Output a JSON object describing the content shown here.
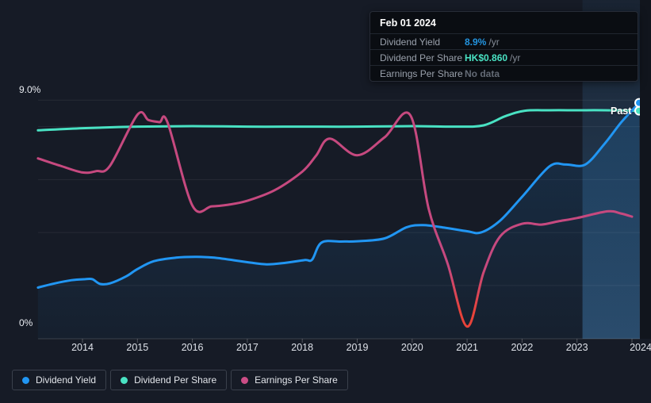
{
  "tooltip": {
    "date": "Feb 01 2024",
    "rows": [
      {
        "label": "Dividend Yield",
        "value": "8.9%",
        "suffix": "/yr",
        "value_color": "#2394df"
      },
      {
        "label": "Dividend Per Share",
        "value": "HK$0.860",
        "suffix": "/yr",
        "value_color": "#49e2c3"
      },
      {
        "label": "Earnings Per Share",
        "value": "No data",
        "suffix": "",
        "value_color": "#636a75"
      }
    ]
  },
  "past_label": "Past",
  "y_axis": {
    "top_label": "9.0%",
    "bottom_label": "0%"
  },
  "legend": [
    {
      "label": "Dividend Yield",
      "color": "#2196f3"
    },
    {
      "label": "Dividend Per Share",
      "color": "#49e2c3"
    },
    {
      "label": "Earnings Per Share",
      "color": "#cb4d86"
    }
  ],
  "chart_data": {
    "type": "line",
    "title": "Dividend history (Past)",
    "x_ticks": [
      "2014",
      "2015",
      "2016",
      "2017",
      "2018",
      "2019",
      "2020",
      "2021",
      "2022",
      "2023",
      "2024"
    ],
    "x_range": [
      2013.19,
      2024.13
    ],
    "ylim": [
      0,
      9
    ],
    "y_unit": "%",
    "gridlines_pct": [
      2,
      4,
      6,
      8,
      9
    ],
    "grid": true,
    "legend_position": "bottom-left",
    "highlight_band_from_year": 2023.1,
    "series": [
      {
        "name": "Dividend Yield",
        "color": "#2196f3",
        "area": true,
        "end_marker": true,
        "unit": "%",
        "points": [
          [
            2013.19,
            1.92
          ],
          [
            2013.5,
            2.08
          ],
          [
            2013.8,
            2.2
          ],
          [
            2014.05,
            2.24
          ],
          [
            2014.18,
            2.24
          ],
          [
            2014.32,
            2.06
          ],
          [
            2014.5,
            2.08
          ],
          [
            2014.8,
            2.35
          ],
          [
            2015.0,
            2.62
          ],
          [
            2015.3,
            2.92
          ],
          [
            2015.7,
            3.05
          ],
          [
            2016.05,
            3.08
          ],
          [
            2016.4,
            3.05
          ],
          [
            2017.0,
            2.88
          ],
          [
            2017.35,
            2.8
          ],
          [
            2017.7,
            2.86
          ],
          [
            2018.05,
            2.96
          ],
          [
            2018.18,
            2.98
          ],
          [
            2018.35,
            3.62
          ],
          [
            2018.7,
            3.66
          ],
          [
            2019.0,
            3.67
          ],
          [
            2019.5,
            3.78
          ],
          [
            2019.9,
            4.2
          ],
          [
            2020.2,
            4.28
          ],
          [
            2020.6,
            4.18
          ],
          [
            2021.0,
            4.05
          ],
          [
            2021.25,
            4.0
          ],
          [
            2021.6,
            4.45
          ],
          [
            2022.0,
            5.35
          ],
          [
            2022.5,
            6.5
          ],
          [
            2022.8,
            6.57
          ],
          [
            2023.15,
            6.57
          ],
          [
            2023.5,
            7.35
          ],
          [
            2023.8,
            8.15
          ],
          [
            2024.13,
            8.9
          ]
        ]
      },
      {
        "name": "Dividend Per Share",
        "color": "#49e2c3",
        "end_marker": true,
        "unit": "HK$ (hidden scale; latest HK$0.860/yr)",
        "points": [
          [
            2013.19,
            7.86
          ],
          [
            2014.0,
            7.94
          ],
          [
            2015.0,
            8.0
          ],
          [
            2016.0,
            8.02
          ],
          [
            2017.0,
            8.0
          ],
          [
            2018.0,
            8.0
          ],
          [
            2019.0,
            8.0
          ],
          [
            2020.0,
            8.02
          ],
          [
            2020.8,
            8.0
          ],
          [
            2021.3,
            8.05
          ],
          [
            2021.7,
            8.4
          ],
          [
            2022.05,
            8.6
          ],
          [
            2022.5,
            8.62
          ],
          [
            2023.0,
            8.62
          ],
          [
            2023.5,
            8.62
          ],
          [
            2024.13,
            8.6
          ]
        ]
      },
      {
        "name": "Earnings Per Share",
        "color": "#c6497f",
        "negative_dip_color": "#e8433a",
        "unit": "HK$ (hidden scale; no data at Feb 01 2024)",
        "points": [
          [
            2013.19,
            6.8
          ],
          [
            2013.6,
            6.52
          ],
          [
            2014.0,
            6.27
          ],
          [
            2014.25,
            6.32
          ],
          [
            2014.5,
            6.52
          ],
          [
            2015.0,
            8.45
          ],
          [
            2015.2,
            8.25
          ],
          [
            2015.4,
            8.17
          ],
          [
            2015.55,
            8.15
          ],
          [
            2016.0,
            5.02
          ],
          [
            2016.35,
            4.99
          ],
          [
            2016.65,
            5.05
          ],
          [
            2017.0,
            5.2
          ],
          [
            2017.5,
            5.6
          ],
          [
            2018.0,
            6.3
          ],
          [
            2018.25,
            6.9
          ],
          [
            2018.5,
            7.55
          ],
          [
            2019.0,
            6.92
          ],
          [
            2019.5,
            7.6
          ],
          [
            2019.97,
            8.42
          ],
          [
            2020.3,
            4.9
          ],
          [
            2020.65,
            2.8
          ],
          [
            2021.0,
            0.45
          ],
          [
            2021.3,
            2.5
          ],
          [
            2021.6,
            3.85
          ],
          [
            2022.0,
            4.33
          ],
          [
            2022.35,
            4.3
          ],
          [
            2022.65,
            4.42
          ],
          [
            2023.0,
            4.55
          ],
          [
            2023.55,
            4.8
          ],
          [
            2023.8,
            4.72
          ],
          [
            2024.0,
            4.6
          ]
        ]
      }
    ]
  }
}
